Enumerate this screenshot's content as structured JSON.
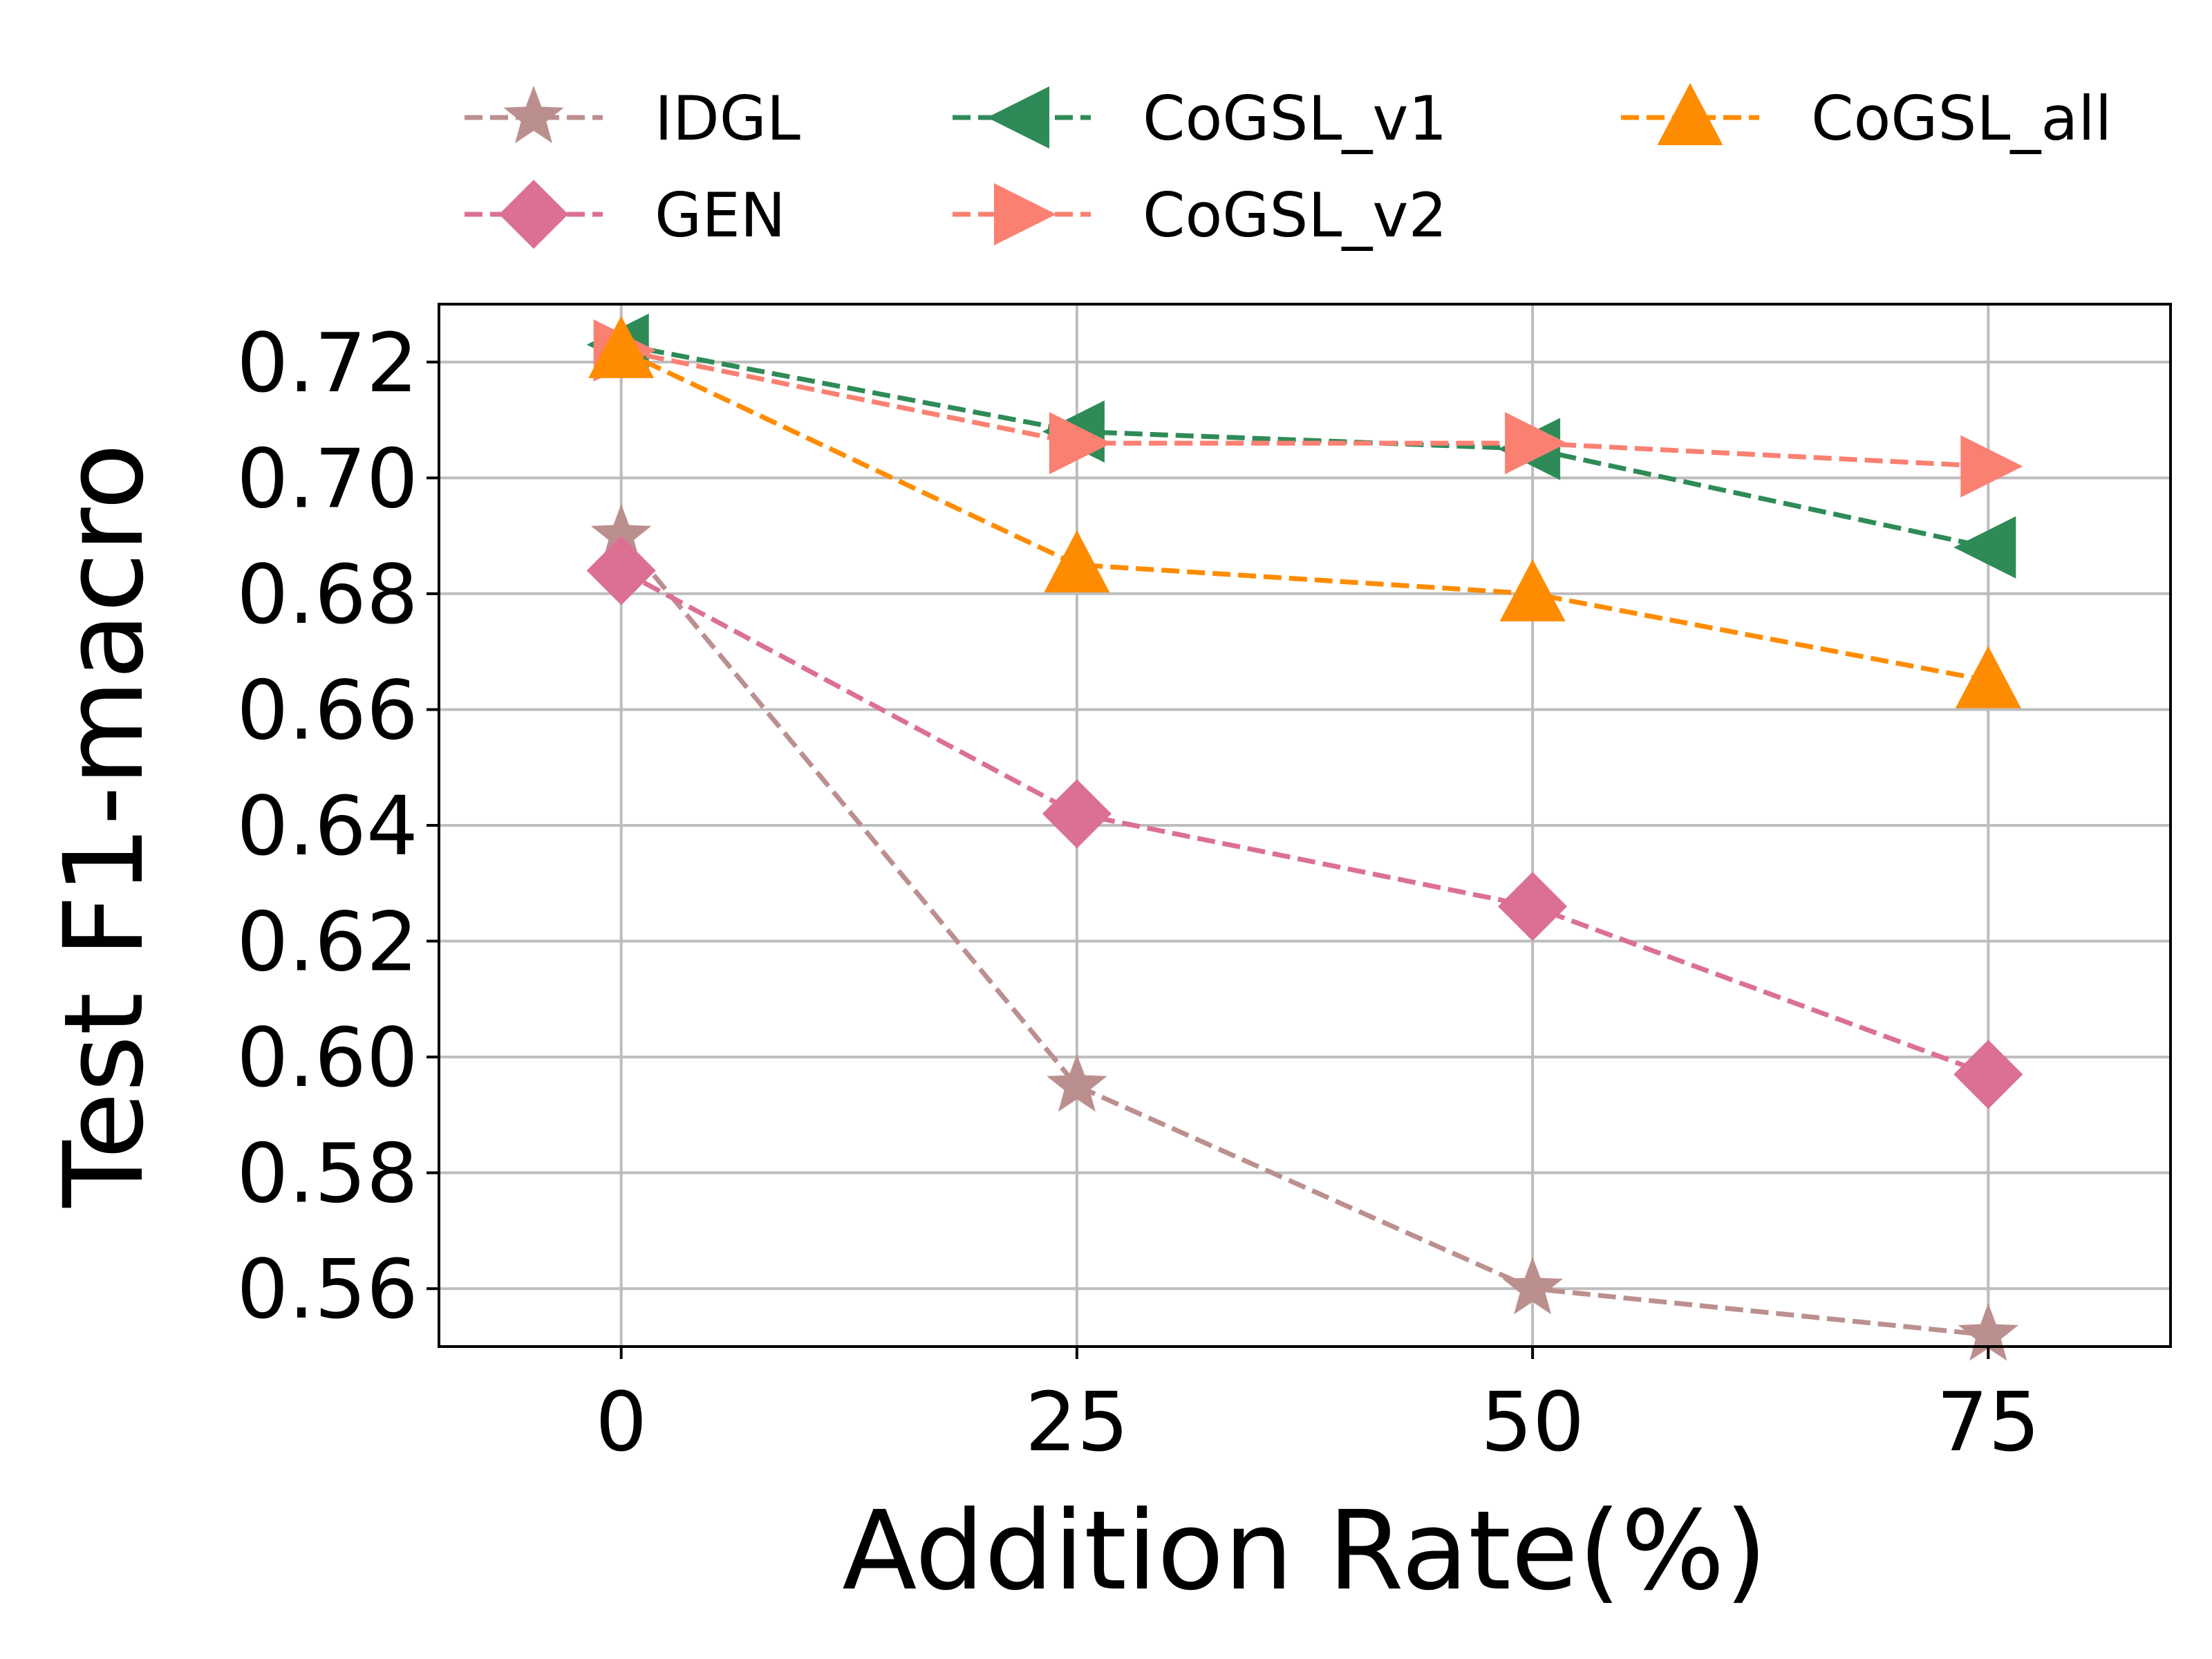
{
  "chart_data": {
    "type": "line",
    "title": "",
    "xlabel": "Addition Rate(%)",
    "ylabel": "Test F1-macro",
    "x": [
      0,
      25,
      50,
      75
    ],
    "xticks": [
      0,
      25,
      50,
      75
    ],
    "xtick_labels": [
      "0",
      "25",
      "50",
      "75"
    ],
    "xlim": [
      -10,
      85
    ],
    "ylim": [
      0.55,
      0.73
    ],
    "yticks": [
      0.56,
      0.58,
      0.6,
      0.62,
      0.64,
      0.66,
      0.68,
      0.7,
      0.72
    ],
    "ytick_labels": [
      "0.56",
      "0.58",
      "0.60",
      "0.62",
      "0.64",
      "0.66",
      "0.68",
      "0.70",
      "0.72"
    ],
    "grid": true,
    "legend_position": "top",
    "series": [
      {
        "name": "IDGL",
        "marker": "star",
        "color": "#bc8f8f",
        "values": [
          0.69,
          0.595,
          0.56,
          0.552
        ]
      },
      {
        "name": "GEN",
        "marker": "diamond",
        "color": "#db7093",
        "values": [
          0.684,
          0.642,
          0.626,
          0.597
        ]
      },
      {
        "name": "CoGSL_v1",
        "marker": "triangle-left",
        "color": "#2e8b57",
        "values": [
          0.723,
          0.708,
          0.705,
          0.688
        ]
      },
      {
        "name": "CoGSL_v2",
        "marker": "triangle-right",
        "color": "#fa8072",
        "values": [
          0.722,
          0.706,
          0.706,
          0.702
        ]
      },
      {
        "name": "CoGSL_all",
        "marker": "triangle-up",
        "color": "#ff8c00",
        "values": [
          0.722,
          0.685,
          0.68,
          0.665
        ]
      }
    ]
  }
}
